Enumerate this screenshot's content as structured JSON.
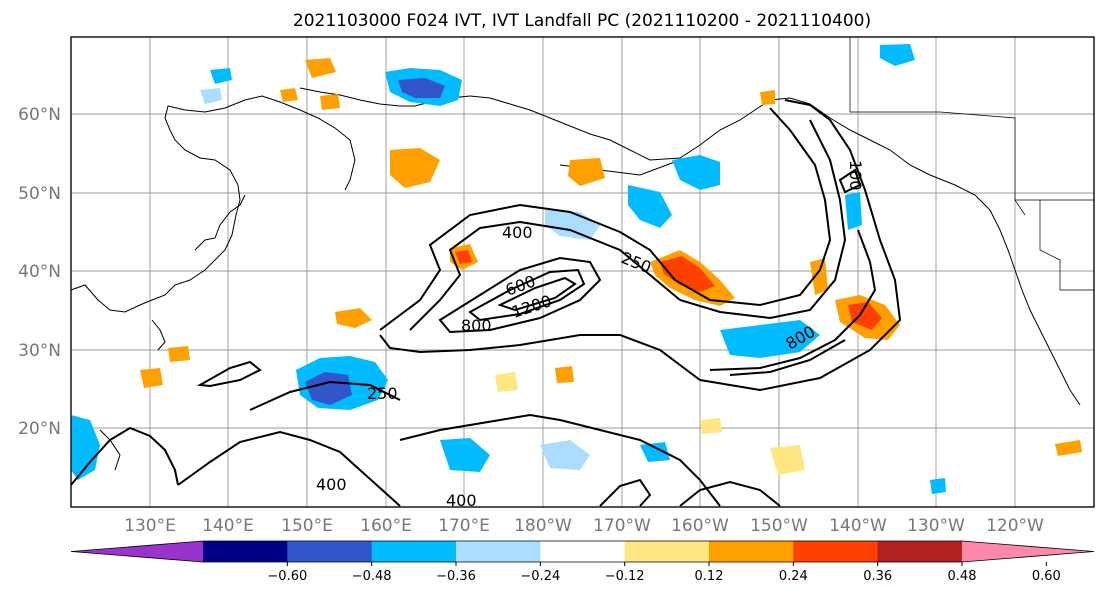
{
  "title": "2021103000 F024 IVT, IVT Landfall PC (2021110200 - 2021110400)",
  "map": {
    "lat_labels": [
      "60°N",
      "50°N",
      "40°N",
      "30°N",
      "20°N"
    ],
    "lon_labels": [
      "130°E",
      "140°E",
      "150°E",
      "160°E",
      "170°E",
      "180°W",
      "170°W",
      "160°W",
      "150°W",
      "140°W",
      "130°W",
      "120°W"
    ],
    "contour_labels": [
      "400",
      "250",
      "600",
      "800",
      "1200",
      "800",
      "100",
      "250",
      "400",
      "400"
    ]
  },
  "colorbar": {
    "colors": [
      "#9933cc",
      "#000088",
      "#3355cc",
      "#00bbff",
      "#aaddff",
      "#ffffff",
      "#ffe680",
      "#ffa000",
      "#ff4000",
      "#b22222",
      "#ff88aa"
    ],
    "tick_labels": [
      "−0.60",
      "−0.48",
      "−0.36",
      "−0.24",
      "−0.12",
      "0.12",
      "0.24",
      "0.36",
      "0.48",
      "0.60"
    ]
  }
}
